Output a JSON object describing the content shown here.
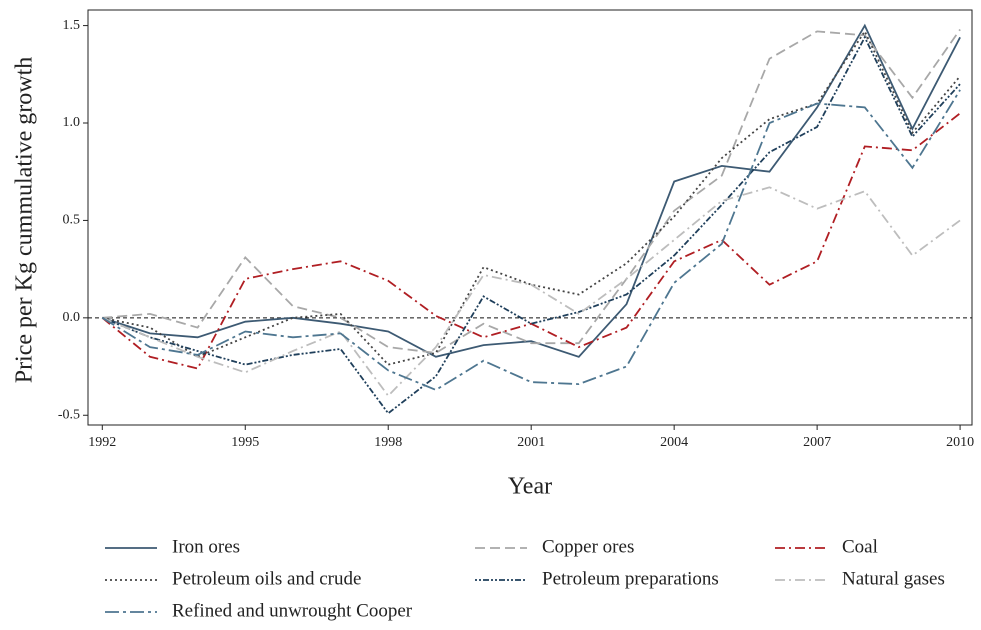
{
  "chart_data": {
    "type": "line",
    "x_label": "Year",
    "y_label": "Price per Kg cummulative growth",
    "x": [
      1992,
      1993,
      1994,
      1995,
      1996,
      1997,
      1998,
      1999,
      2000,
      2001,
      2002,
      2003,
      2004,
      2005,
      2006,
      2007,
      2008,
      2009,
      2010
    ],
    "xlim": [
      1991.7,
      2010.25
    ],
    "xticks": [
      1992,
      1995,
      1998,
      2001,
      2004,
      2007,
      2010
    ],
    "ylim": [
      -0.55,
      1.58
    ],
    "yticks": [
      -0.5,
      {
        "value": 0,
        "label": "0.0"
      },
      0.5,
      {
        "value": 1,
        "label": "1.0"
      },
      1.5
    ],
    "hline": 0,
    "series": [
      {
        "name": "Iron ores",
        "color": "#3d5a73",
        "style": "solid",
        "values": [
          0,
          -0.08,
          -0.1,
          -0.02,
          0,
          -0.03,
          -0.07,
          -0.2,
          -0.14,
          -0.12,
          -0.2,
          0.07,
          0.7,
          0.78,
          0.75,
          1.08,
          1.5,
          0.97,
          1.44
        ]
      },
      {
        "name": "Copper ores",
        "color": "#a8a8a8",
        "style": "dashed",
        "values": [
          0,
          0.02,
          -0.05,
          0.31,
          0.06,
          0,
          -0.15,
          -0.18,
          -0.03,
          -0.13,
          -0.13,
          0.2,
          0.55,
          0.73,
          1.33,
          1.47,
          1.45,
          1.13,
          1.48
        ]
      },
      {
        "name": "Coal",
        "color": "#b01e23",
        "style": "dashdot",
        "values": [
          0,
          -0.2,
          -0.26,
          0.2,
          0.25,
          0.29,
          0.19,
          0.01,
          -0.1,
          -0.03,
          -0.15,
          -0.05,
          0.29,
          0.4,
          0.17,
          0.29,
          0.88,
          0.86,
          1.05
        ]
      },
      {
        "name": "Petroleum oils and crude",
        "color": "#444444",
        "style": "dotted",
        "values": [
          0,
          -0.05,
          -0.2,
          -0.1,
          0,
          0.02,
          -0.24,
          -0.18,
          0.26,
          0.17,
          0.12,
          0.28,
          0.52,
          0.82,
          1.02,
          1.1,
          1.47,
          0.95,
          1.24
        ]
      },
      {
        "name": "Petroleum preparations",
        "color": "#1f3f5b",
        "style": "dotdash",
        "values": [
          0,
          -0.1,
          -0.17,
          -0.24,
          -0.19,
          -0.16,
          -0.49,
          -0.3,
          0.11,
          -0.03,
          0.03,
          0.12,
          0.32,
          0.58,
          0.85,
          0.98,
          1.44,
          0.93,
          1.2
        ]
      },
      {
        "name": "Natural gases",
        "color": "#bdbdbd",
        "style": "dashdot",
        "values": [
          0,
          -0.1,
          -0.2,
          -0.28,
          -0.17,
          -0.07,
          -0.4,
          -0.15,
          0.22,
          0.17,
          0.02,
          0.2,
          0.4,
          0.6,
          0.67,
          0.56,
          0.65,
          0.32,
          0.5
        ]
      },
      {
        "name": "Refined and unwrought Cooper",
        "color": "#4e7690",
        "style": "longdashdot",
        "values": [
          0,
          -0.15,
          -0.19,
          -0.07,
          -0.1,
          -0.08,
          -0.27,
          -0.37,
          -0.22,
          -0.33,
          -0.34,
          -0.25,
          0.18,
          0.38,
          1.0,
          1.1,
          1.08,
          0.77,
          1.17
        ]
      }
    ]
  }
}
